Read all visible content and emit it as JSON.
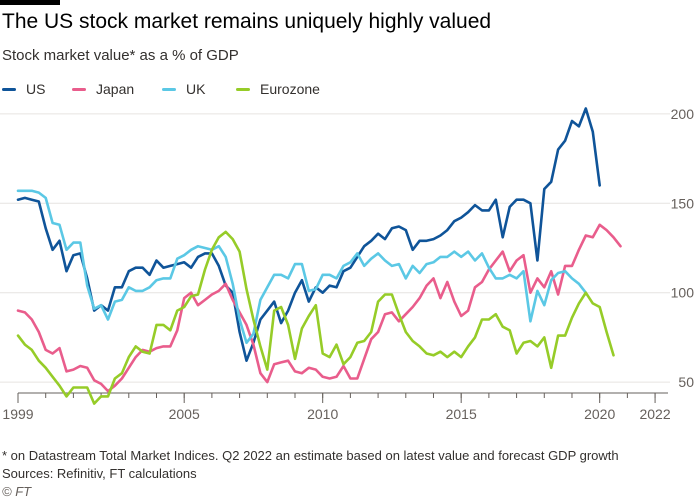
{
  "title": "The US stock market remains uniquely highly valued",
  "subtitle": "Stock market value* as a % of GDP",
  "footnote": "* on Datastream Total Market Indices. Q2 2022 an estimate based on latest value and forecast GDP growth",
  "sources": "Sources: Refinitiv, FT calculations",
  "credit": "© FT",
  "chart_data": {
    "type": "line",
    "title": "The US stock market remains uniquely highly valued",
    "subtitle": "Stock market value* as a % of GDP",
    "xlabel": "",
    "ylabel": "",
    "x_start": 1999,
    "x_step": 0.25,
    "xlim": [
      1999,
      2022.25
    ],
    "ylim": [
      40,
      210
    ],
    "y_ticks": [
      50,
      100,
      150,
      200
    ],
    "x_ticks": [
      1999,
      2005,
      2010,
      2015,
      2020,
      2022
    ],
    "grid": true,
    "legend": "top-left",
    "series": [
      {
        "name": "US",
        "color": "#0f5499",
        "values": [
          152,
          153,
          152,
          151,
          136,
          124,
          129,
          112,
          121,
          122,
          108,
          90,
          93,
          90,
          103,
          103,
          112,
          114,
          114,
          110,
          118,
          114,
          115,
          116,
          117,
          114,
          120,
          122,
          122,
          115,
          104,
          100,
          78,
          62,
          72,
          85,
          90,
          95,
          83,
          90,
          100,
          107,
          95,
          103,
          100,
          104,
          103,
          112,
          114,
          120,
          126,
          129,
          133,
          130,
          136,
          137,
          135,
          124,
          129,
          129,
          130,
          132,
          135,
          140,
          142,
          145,
          149,
          146,
          146,
          152,
          131,
          148,
          152,
          152,
          150,
          118,
          158,
          162,
          180,
          185,
          196,
          193,
          203,
          190,
          160
        ]
      },
      {
        "name": "Japan",
        "color": "#e95d8c",
        "values": [
          90,
          89,
          85,
          78,
          68,
          66,
          69,
          56,
          57,
          59,
          58,
          51,
          49,
          45,
          48,
          52,
          58,
          64,
          68,
          67,
          69,
          70,
          70,
          79,
          97,
          100,
          93,
          96,
          99,
          101,
          105,
          96,
          89,
          82,
          71,
          55,
          50,
          60,
          61,
          62,
          56,
          55,
          58,
          57,
          53,
          52,
          53,
          59,
          52,
          52,
          63,
          74,
          78,
          88,
          89,
          84,
          88,
          92,
          97,
          104,
          108,
          97,
          106,
          95,
          87,
          90,
          103,
          106,
          113,
          118,
          123,
          112,
          118,
          121,
          100,
          108,
          103,
          112,
          99,
          115,
          115,
          124,
          132,
          131,
          138,
          135,
          131,
          126
        ]
      },
      {
        "name": "UK",
        "color": "#5bc8e5",
        "values": [
          157,
          157,
          157,
          156,
          153,
          139,
          138,
          124,
          128,
          128,
          104,
          91,
          93,
          85,
          95,
          96,
          103,
          101,
          101,
          103,
          107,
          108,
          108,
          119,
          121,
          124,
          126,
          125,
          124,
          126,
          120,
          105,
          85,
          72,
          77,
          96,
          103,
          110,
          110,
          108,
          116,
          116,
          101,
          102,
          110,
          110,
          108,
          115,
          117,
          122,
          115,
          119,
          122,
          118,
          115,
          116,
          108,
          115,
          111,
          116,
          117,
          120,
          120,
          123,
          120,
          123,
          118,
          122,
          114,
          108,
          108,
          110,
          108,
          112,
          84,
          101,
          93,
          107,
          111,
          112,
          108,
          105,
          100
        ]
      },
      {
        "name": "Eurozone",
        "color": "#96cc28",
        "values": [
          76,
          71,
          68,
          62,
          58,
          53,
          48,
          42,
          47,
          47,
          47,
          38,
          42,
          42,
          52,
          55,
          64,
          70,
          67,
          66,
          82,
          82,
          79,
          90,
          92,
          98,
          99,
          113,
          124,
          131,
          134,
          130,
          123,
          102,
          85,
          70,
          57,
          90,
          92,
          82,
          63,
          80,
          87,
          93,
          66,
          64,
          71,
          60,
          64,
          72,
          73,
          78,
          95,
          99,
          99,
          88,
          78,
          73,
          70,
          66,
          65,
          67,
          64,
          67,
          64,
          70,
          75,
          85,
          85,
          88,
          81,
          79,
          66,
          72,
          73,
          70,
          75,
          58,
          76,
          76,
          86,
          94,
          100,
          94,
          92,
          78,
          65
        ]
      }
    ]
  }
}
